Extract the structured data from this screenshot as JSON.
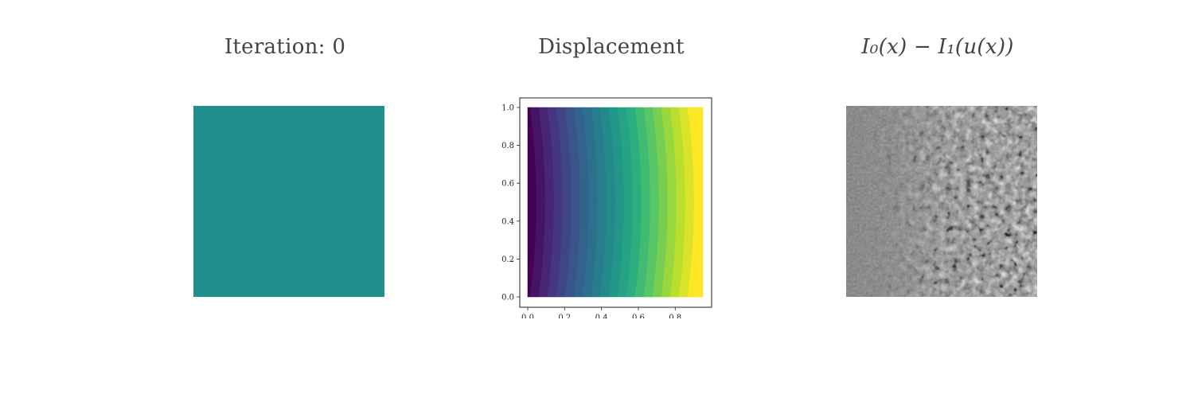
{
  "titles": {
    "left": "Iteration: 0",
    "middle": "Displacement",
    "right": "I₀(x) − I₁(u(x))"
  },
  "colors": {
    "uniform_field": "#21908c",
    "viridis": [
      "#440154",
      "#472d7b",
      "#3b528b",
      "#2c728e",
      "#21918c",
      "#28ae80",
      "#5ec962",
      "#addc30",
      "#fde725"
    ]
  },
  "chart_data": [
    {
      "type": "heatmap",
      "panel": "left",
      "title": "Iteration: 0",
      "field": "uniform",
      "color": "#21908c"
    },
    {
      "type": "heatmap",
      "panel": "middle",
      "title": "Displacement",
      "subtype": "filled-contour",
      "colormap": "viridis",
      "levels": 20,
      "xlim": [
        0.0,
        0.95
      ],
      "ylim": [
        0.0,
        1.0
      ],
      "xticks": [
        "0.0",
        "0.2",
        "0.4",
        "0.6",
        "0.8"
      ],
      "xtick_values": [
        0.0,
        0.2,
        0.4,
        0.6,
        0.8
      ],
      "yticks": [
        "0.0",
        "0.2",
        "0.4",
        "0.6",
        "0.8",
        "1.0"
      ],
      "ytick_values": [
        0.0,
        0.2,
        0.4,
        0.6,
        0.8,
        1.0
      ],
      "contour_bulge": 0.035,
      "grid": false
    },
    {
      "type": "heatmap",
      "panel": "right",
      "title": "I₀(x) − I₁(u(x))",
      "colormap": "gray",
      "field": "noise-texture"
    }
  ]
}
